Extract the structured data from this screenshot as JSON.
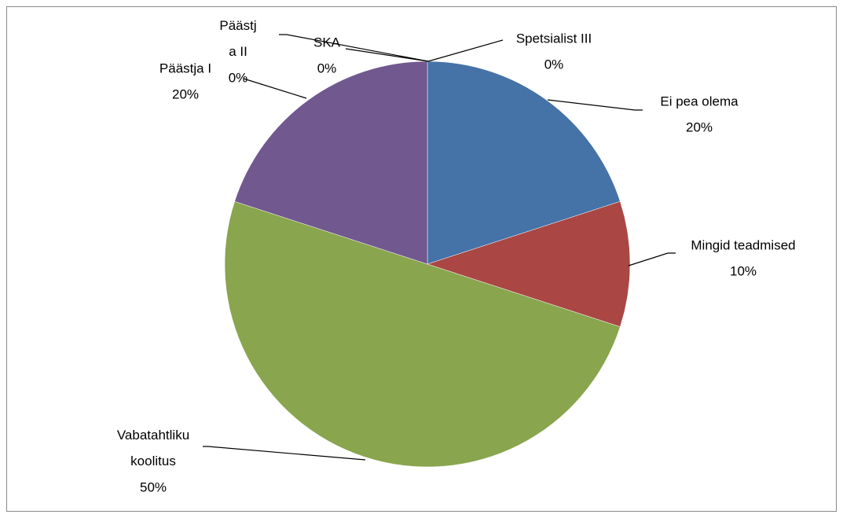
{
  "chart_data": {
    "type": "pie",
    "categories": [
      "Spetsialist III",
      "Ei pea olema",
      "Mingid teadmised",
      "Vabatahtliku koolitus",
      "Päästja I",
      "Päästja II",
      "SKA"
    ],
    "values": [
      0,
      20,
      10,
      50,
      20,
      0,
      0
    ],
    "value_labels": [
      "0%",
      "20%",
      "10%",
      "50%",
      "20%",
      "0%",
      "0%"
    ],
    "colors": [
      "#4F81BD",
      "#4572A7",
      "#AA4643",
      "#89A54E",
      "#71588F",
      "#4198AF",
      "#DB843D"
    ]
  }
}
